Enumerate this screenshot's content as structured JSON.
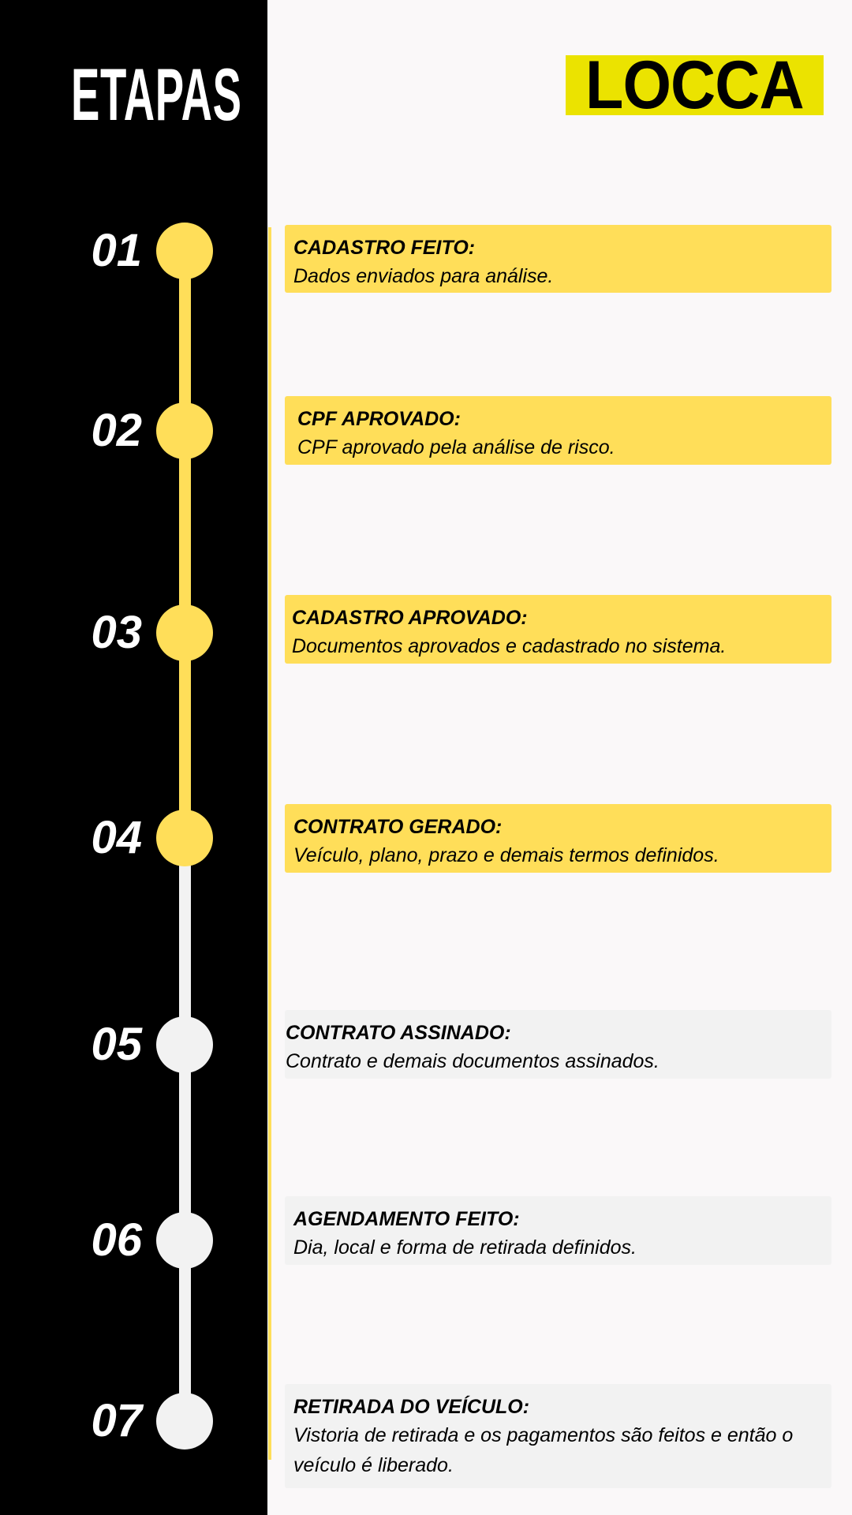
{
  "header": {
    "title": "ETAPAS",
    "brand": "LOCCA"
  },
  "colors": {
    "panel": "#000000",
    "active": "#ffde59",
    "inactive": "#f2f2f2",
    "brand_bg": "#ebe300",
    "background": "#faf8f9"
  },
  "steps": [
    {
      "number": "01",
      "title": "CADASTRO FEITO:",
      "description": "Dados enviados para análise.",
      "completed": true
    },
    {
      "number": "02",
      "title": "CPF APROVADO:",
      "description": "CPF aprovado pela análise de risco.",
      "completed": true
    },
    {
      "number": "03",
      "title": "CADASTRO APROVADO:",
      "description": "Documentos aprovados e cadastrado no sistema.",
      "completed": true
    },
    {
      "number": "04",
      "title": "CONTRATO GERADO:",
      "description": "Veículo, plano, prazo e demais termos definidos.",
      "completed": true
    },
    {
      "number": "05",
      "title": "CONTRATO ASSINADO:",
      "description": "Contrato e demais documentos assinados.",
      "completed": false
    },
    {
      "number": "06",
      "title": "AGENDAMENTO FEITO:",
      "description": "Dia, local e forma de retirada definidos.",
      "completed": false
    },
    {
      "number": "07",
      "title": "RETIRADA DO VEÍCULO:",
      "description": "Vistoria de retirada e os pagamentos são feitos e então o veículo é liberado.",
      "completed": false
    }
  ]
}
